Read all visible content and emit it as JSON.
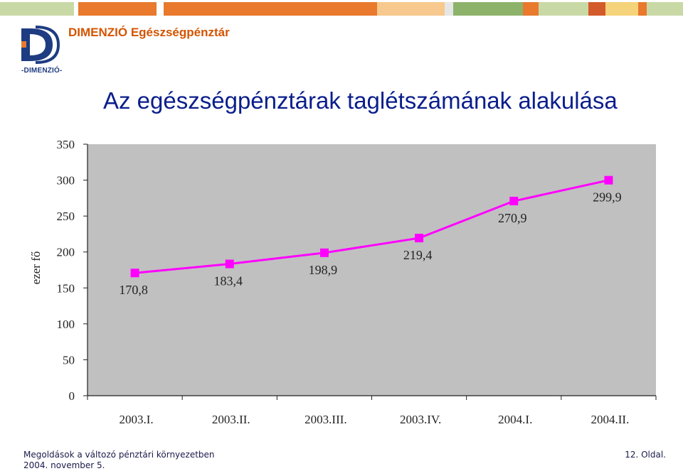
{
  "header": {
    "brand_name": "DIMENZIÓ Egészségpénztár",
    "logo_caption": "-DIMENZIÓ-",
    "bar_colors": [
      "#c9d9a6",
      "#e8792d",
      "#f3b68a",
      "#f7c98e",
      "#e6e6e6",
      "#8db36b",
      "#e8792d",
      "#c9d9a6",
      "#d35a2a",
      "#f5d37a",
      "#e8792d",
      "#f5c48a"
    ]
  },
  "title": "Az egészségpénztárak taglétszámának alakulása",
  "chart_data": {
    "type": "line",
    "categories": [
      "2003.I.",
      "2003.II.",
      "2003.III.",
      "2003.IV.",
      "2004.I.",
      "2004.II."
    ],
    "values": [
      170.8,
      183.4,
      198.9,
      219.4,
      270.9,
      299.9
    ],
    "value_labels": [
      "170,8",
      "183,4",
      "198,9",
      "219,4",
      "270,9",
      "299,9"
    ],
    "ylabel": "ezer fő",
    "ylim": [
      0,
      350
    ],
    "yticks": [
      0,
      50,
      100,
      150,
      200,
      250,
      300,
      350
    ],
    "plot_background": "#c0c0c0",
    "line_color": "#ff00ff",
    "grid": false,
    "legend": "none"
  },
  "footer": {
    "line1": "Megoldások a változó pénztári környezetben",
    "line2": "2004. november 5.",
    "page": "12. Oldal."
  }
}
